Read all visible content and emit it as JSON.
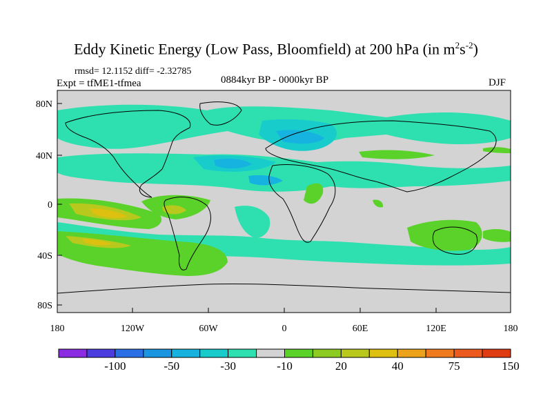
{
  "title": {
    "main": "Eddy Kinetic Energy (Low Pass, Bloomfield) at 200 hPa (in m",
    "sup1": "2",
    "mid": "s",
    "sup2": "-2",
    "end": ")"
  },
  "stats": "rmsd= 12.1152 diff= -2.32785",
  "experiment": "Expt = tfME1-tfmea",
  "period": "0884kyr BP - 0000kyr BP",
  "season": "DJF",
  "lat_labels": [
    "80N",
    "40N",
    "0",
    "40S",
    "80S"
  ],
  "lon_labels": [
    "180",
    "120W",
    "60W",
    "0",
    "60E",
    "120E",
    "180"
  ],
  "colorbar": {
    "colors": [
      "#8a2be2",
      "#4b3ce0",
      "#2b6fe6",
      "#1b95e0",
      "#17b3e0",
      "#19cccc",
      "#2ee0b0",
      "#d3d3d3",
      "#5ad22a",
      "#8ccc22",
      "#b8c81c",
      "#ddc010",
      "#eca21a",
      "#f07b1e",
      "#ec5a1e",
      "#e03c12"
    ],
    "labels": [
      "-100",
      "-50",
      "-30",
      "-10",
      "20",
      "40",
      "75",
      "150"
    ]
  },
  "map_colors": {
    "land_ocean_neutral": "#d3d3d3",
    "cyan": "#2ee0b0",
    "light_blue": "#19cccc",
    "blue": "#17b3e0",
    "green": "#5ad22a",
    "yellow_green": "#b8c81c",
    "orange": "#ddc010"
  }
}
